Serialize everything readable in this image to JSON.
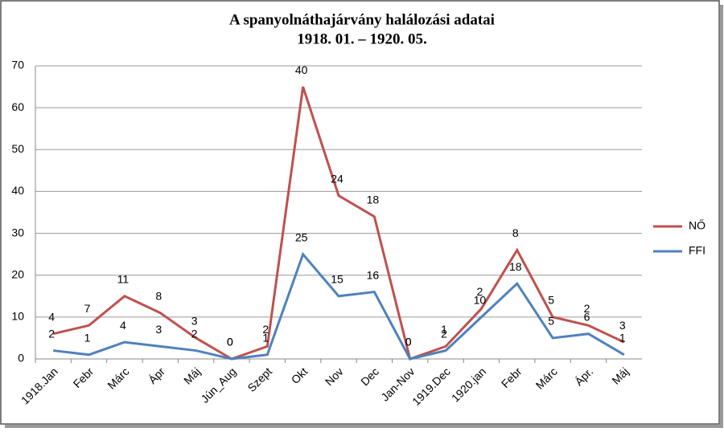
{
  "chart_data": {
    "type": "line",
    "stacked": true,
    "title": "A spanyolnáthajárvány halálozási adatai",
    "subtitle": "1918. 01. – 1920. 05.",
    "categories": [
      "1918.Jan",
      "Febr",
      "Márc",
      "Ápr",
      "Máj",
      "Jún_Aug",
      "Szept",
      "Okt",
      "Nov",
      "Dec",
      "Jan-Nov",
      "1919.Dec",
      "1920.jan",
      "Febr",
      "Márc",
      "Ápr.",
      "Máj"
    ],
    "series": [
      {
        "name": "NŐ",
        "color": "#c0504d",
        "values": [
          4,
          7,
          11,
          8,
          3,
          0,
          2,
          40,
          24,
          18,
          0,
          1,
          2,
          8,
          5,
          2,
          3
        ]
      },
      {
        "name": "FFI",
        "color": "#4f81bd",
        "values": [
          2,
          1,
          4,
          3,
          2,
          0,
          1,
          25,
          15,
          16,
          0,
          2,
          10,
          18,
          5,
          6,
          1
        ]
      }
    ],
    "ylim": [
      0,
      70
    ],
    "yticks": [
      0,
      10,
      20,
      30,
      40,
      50,
      60,
      70
    ],
    "grid": true,
    "legend": "right"
  }
}
